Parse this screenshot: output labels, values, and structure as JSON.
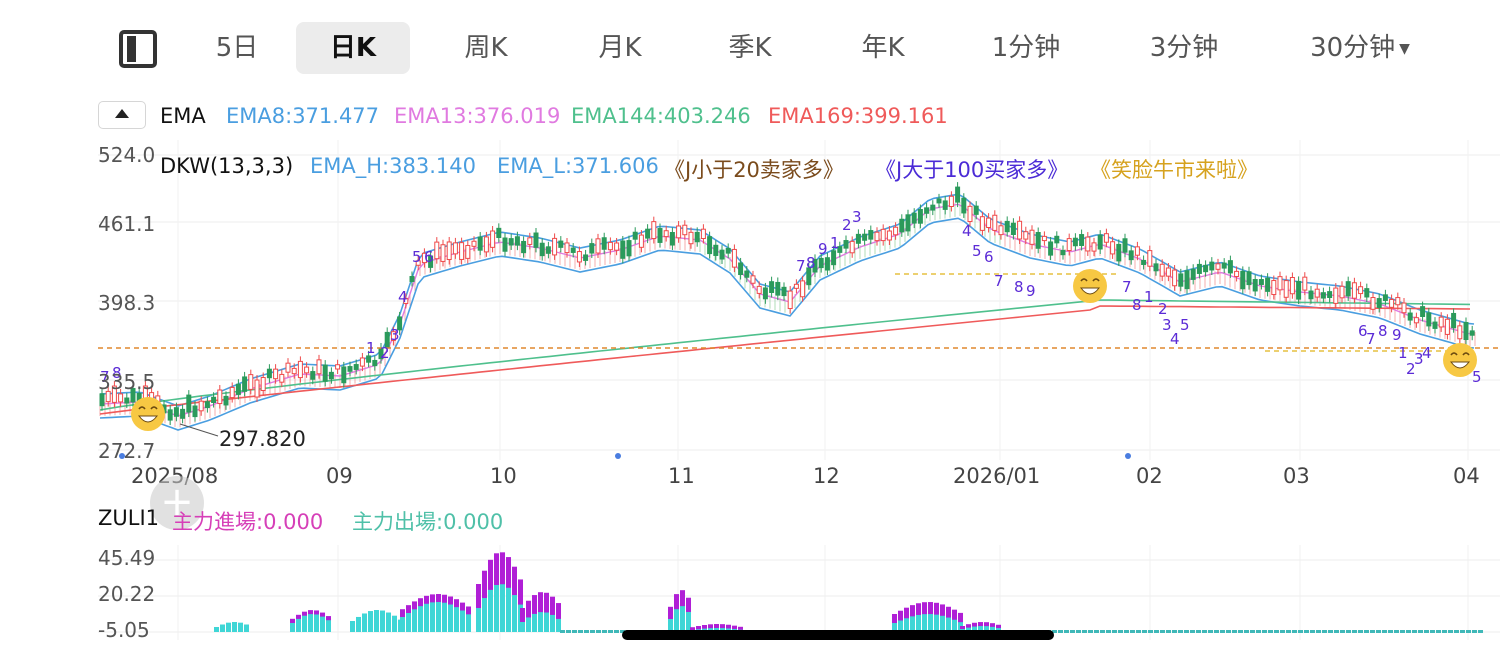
{
  "tabs": {
    "panel_icon": "layout-panel-icon",
    "items": [
      {
        "label": "5日",
        "active": false
      },
      {
        "label": "日K",
        "active": true
      },
      {
        "label": "周K",
        "active": false
      },
      {
        "label": "月K",
        "active": false
      },
      {
        "label": "季K",
        "active": false
      },
      {
        "label": "年K",
        "active": false
      },
      {
        "label": "1分钟",
        "active": false
      },
      {
        "label": "3分钟",
        "active": false
      },
      {
        "label": "30分钟",
        "active": false,
        "dropdown": true
      }
    ]
  },
  "ema": {
    "name": "EMA",
    "ema8": "EMA8:371.477",
    "ema13": "EMA13:376.019",
    "ema144": "EMA144:403.246",
    "ema169": "EMA169:399.161",
    "colors": {
      "ema8": "#4a9ee0",
      "ema13": "#e07ae0",
      "ema144": "#4fc08d",
      "ema169": "#ef5a5a"
    }
  },
  "dkw": {
    "name": "DKW(13,3,3)",
    "ema_h": "EMA_H:383.140",
    "ema_l": "EMA_L:371.606",
    "j_low": "《J小于20卖家多》",
    "j_high": "《J大于100买家多》",
    "smile": "《笑脸牛市来啦》",
    "colors": {
      "ema": "#4a9ee0",
      "j_low": "#7a4b1c",
      "j_high": "#4b2bd6",
      "smile": "#d6a21e"
    }
  },
  "main_chart": {
    "y_ticks": [
      "524.0",
      "461.1",
      "398.3",
      "335.5",
      "272.7"
    ],
    "x_ticks": [
      "2025/08",
      "09",
      "10",
      "11",
      "12",
      "2026/01",
      "02",
      "03",
      "04"
    ],
    "low_marker": "297.820",
    "countdown_numbers": [
      "7",
      "8",
      "1",
      "2",
      "3",
      "4",
      "5",
      "6",
      "7",
      "8",
      "9",
      "1",
      "2",
      "3",
      "4",
      "5",
      "6",
      "7",
      "8",
      "9"
    ],
    "colors": {
      "up": "#ef4a4a",
      "down": "#2b9a5b",
      "dash": "#e0882e"
    }
  },
  "zuli": {
    "name": "ZULI1",
    "inflow": "主力進場:0.000",
    "outflow": "主力出場:0.000",
    "y_ticks": [
      "45.49",
      "20.22",
      "-5.05"
    ],
    "colors": {
      "inflow": "#d63fb8",
      "outflow": "#4fc0a8",
      "bar_in": "#b01fd6",
      "bar_out": "#3fd6d6"
    }
  }
}
